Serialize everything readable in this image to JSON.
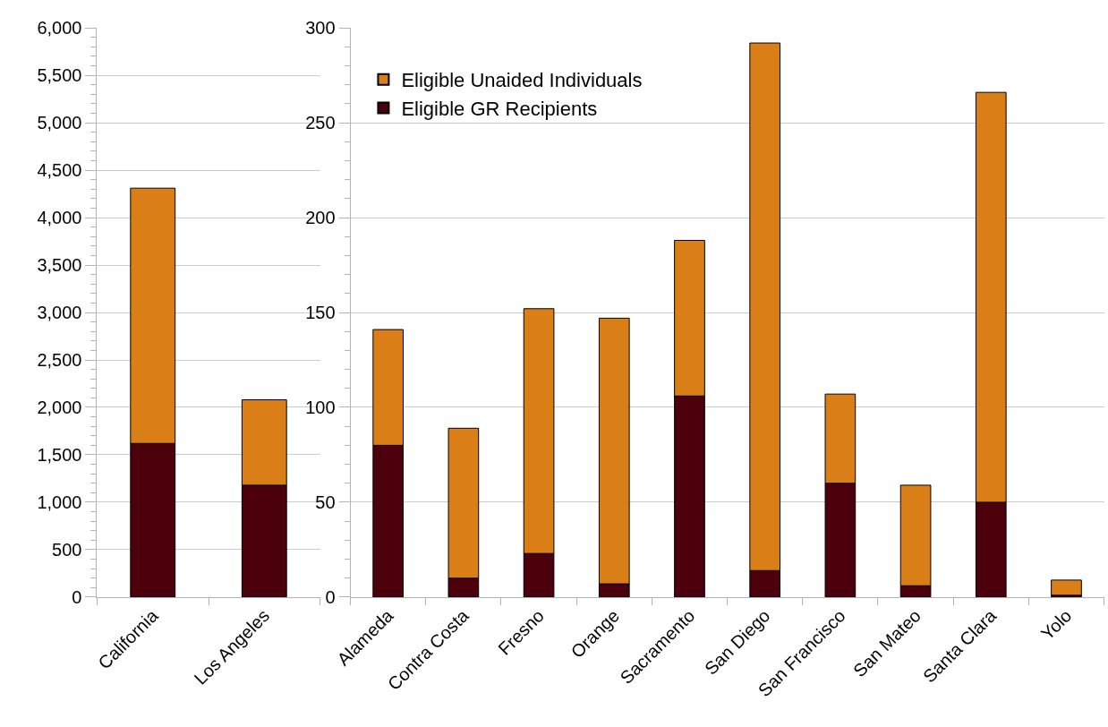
{
  "chart_data": [
    {
      "type": "bar",
      "stacked": true,
      "categories": [
        "California",
        "Los Angeles"
      ],
      "series": [
        {
          "color": "#4c000b",
          "values": [
            1620,
            1180
          ]
        },
        {
          "color": "#da7f18",
          "values": [
            2690,
            900
          ]
        }
      ],
      "ylim": [
        0,
        6000
      ],
      "yticks": [
        0,
        {
          "value": 100,
          "label": null
        },
        {
          "value": 200,
          "label": null
        },
        {
          "value": 300,
          "label": null
        },
        {
          "value": 400,
          "label": null
        },
        {
          "value": 500,
          "label": "500"
        },
        {
          "value": 600,
          "label": null
        },
        {
          "value": 700,
          "label": null
        },
        {
          "value": 800,
          "label": null
        },
        {
          "value": 900,
          "label": null
        },
        {
          "value": 1000,
          "label": "1,000"
        },
        {
          "value": 1100,
          "label": null
        },
        {
          "value": 1200,
          "label": null
        },
        {
          "value": 1300,
          "label": null
        },
        {
          "value": 1400,
          "label": null
        },
        {
          "value": 1500,
          "label": "1,500"
        },
        {
          "value": 1600,
          "label": null
        },
        {
          "value": 1700,
          "label": null
        },
        {
          "value": 1800,
          "label": null
        },
        {
          "value": 1900,
          "label": null
        },
        {
          "value": 2000,
          "label": "2,000"
        },
        {
          "value": 2100,
          "label": null
        },
        {
          "value": 2200,
          "label": null
        },
        {
          "value": 2300,
          "label": null
        },
        {
          "value": 2400,
          "label": null
        },
        {
          "value": 2500,
          "label": "2,500"
        },
        {
          "value": 2600,
          "label": null
        },
        {
          "value": 2700,
          "label": null
        },
        {
          "value": 2800,
          "label": null
        },
        {
          "value": 2900,
          "label": null
        },
        {
          "value": 3000,
          "label": "3,000"
        },
        {
          "value": 3100,
          "label": null
        },
        {
          "value": 3200,
          "label": null
        },
        {
          "value": 3300,
          "label": null
        },
        {
          "value": 3400,
          "label": null
        },
        {
          "value": 3500,
          "label": "3,500"
        },
        {
          "value": 3600,
          "label": null
        },
        {
          "value": 3700,
          "label": null
        },
        {
          "value": 3800,
          "label": null
        },
        {
          "value": 3900,
          "label": null
        },
        {
          "value": 4000,
          "label": "4,000"
        },
        {
          "value": 4100,
          "label": null
        },
        {
          "value": 4200,
          "label": null
        },
        {
          "value": 4300,
          "label": null
        },
        {
          "value": 4400,
          "label": null
        },
        {
          "value": 4500,
          "label": "4,500"
        },
        {
          "value": 4600,
          "label": null
        },
        {
          "value": 4700,
          "label": null
        },
        {
          "value": 4800,
          "label": null
        },
        {
          "value": 4900,
          "label": null
        },
        {
          "value": 5000,
          "label": "5,000"
        },
        {
          "value": 5100,
          "label": null
        },
        {
          "value": 5200,
          "label": null
        },
        {
          "value": 5300,
          "label": null
        },
        {
          "value": 5400,
          "label": null
        },
        {
          "value": 5500,
          "label": "5,500"
        },
        {
          "value": 5600,
          "label": null
        },
        {
          "value": 5700,
          "label": null
        },
        {
          "value": 5800,
          "label": null
        },
        {
          "value": 5900,
          "label": null
        },
        {
          "value": 6000,
          "label": "6,000"
        }
      ],
      "grid": "y",
      "legend": false
    },
    {
      "type": "bar",
      "stacked": true,
      "categories": [
        "Alameda",
        "Contra Costa",
        "Fresno",
        "Orange",
        "Sacramento",
        "San Diego",
        "San Francisco",
        "San Mateo",
        "Santa Clara",
        "Yolo"
      ],
      "series": [
        {
          "name": "Eligible GR Recipients",
          "color": "#4c000b",
          "values": [
            80,
            10,
            23,
            7,
            106,
            14,
            60,
            6,
            50,
            1
          ]
        },
        {
          "name": "Eligible Unaided Individuals",
          "color": "#da7f18",
          "values": [
            61,
            79,
            129,
            140,
            82,
            278,
            47,
            53,
            216,
            8
          ]
        }
      ],
      "ylim": [
        0,
        300
      ],
      "yticks": [
        0,
        {
          "value": 10,
          "label": null
        },
        {
          "value": 20,
          "label": null
        },
        {
          "value": 30,
          "label": null
        },
        {
          "value": 40,
          "label": null
        },
        50,
        {
          "value": 60,
          "label": null
        },
        {
          "value": 70,
          "label": null
        },
        {
          "value": 80,
          "label": null
        },
        {
          "value": 90,
          "label": null
        },
        100,
        {
          "value": 110,
          "label": null
        },
        {
          "value": 120,
          "label": null
        },
        {
          "value": 130,
          "label": null
        },
        {
          "value": 140,
          "label": null
        },
        150,
        {
          "value": 160,
          "label": null
        },
        {
          "value": 170,
          "label": null
        },
        {
          "value": 180,
          "label": null
        },
        {
          "value": 190,
          "label": null
        },
        200,
        {
          "value": 210,
          "label": null
        },
        {
          "value": 220,
          "label": null
        },
        {
          "value": 230,
          "label": null
        },
        {
          "value": 240,
          "label": null
        },
        250,
        {
          "value": 260,
          "label": null
        },
        {
          "value": 270,
          "label": null
        },
        {
          "value": 280,
          "label": null
        },
        {
          "value": 290,
          "label": null
        },
        300
      ],
      "grid": "y",
      "legend": "top left"
    }
  ]
}
